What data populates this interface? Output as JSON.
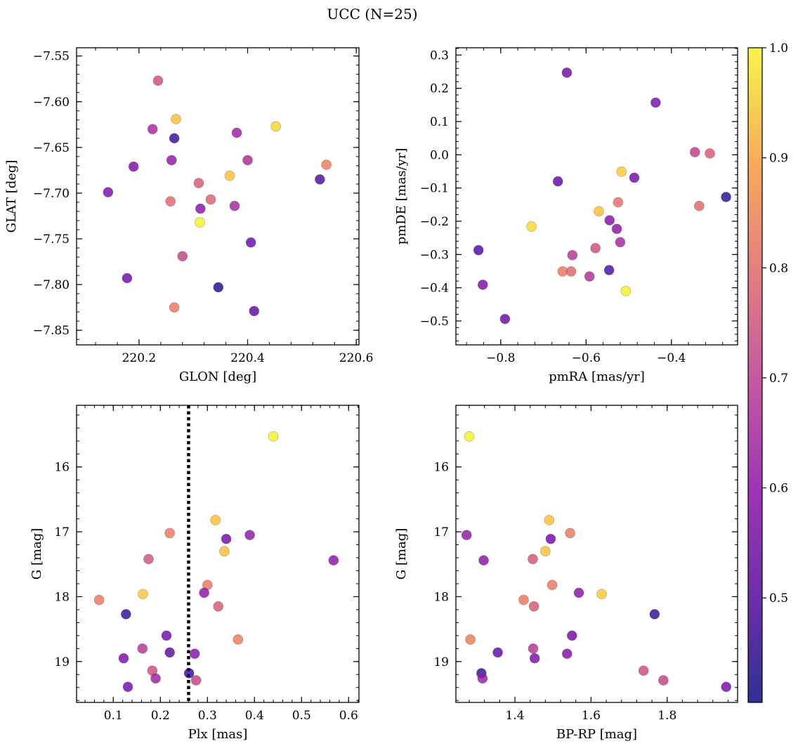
{
  "title": "UCC (N=25)",
  "colorbar": {
    "range": [
      0.405,
      1.0
    ],
    "ticks": [
      0.5,
      0.6,
      0.7,
      0.8,
      0.9,
      1.0
    ],
    "tick_labels": [
      "0.5",
      "0.6",
      "0.7",
      "0.8",
      "0.9",
      "1.0"
    ],
    "colormap": "plasma"
  },
  "chart_data": [
    {
      "type": "scatter",
      "xlabel": "GLON [deg]",
      "ylabel": "GLAT [deg]",
      "xlim": [
        220.085,
        220.605
      ],
      "ylim": [
        -7.866,
        -7.541
      ],
      "xticks": [
        220.2,
        220.4,
        220.6
      ],
      "xtick_labels": [
        "220.2",
        "220.4",
        "220.6"
      ],
      "yticks": [
        -7.85,
        -7.8,
        -7.75,
        -7.7,
        -7.65,
        -7.6,
        -7.55
      ],
      "ytick_labels": [
        "−7.85",
        "−7.80",
        "−7.75",
        "−7.70",
        "−7.65",
        "−7.60",
        "−7.55"
      ],
      "points": [
        {
          "x": 220.235,
          "y": -7.577,
          "c": 0.7
        },
        {
          "x": 220.268,
          "y": -7.619,
          "c": 0.92
        },
        {
          "x": 220.225,
          "y": -7.63,
          "c": 0.62
        },
        {
          "x": 220.265,
          "y": -7.64,
          "c": 0.45
        },
        {
          "x": 220.38,
          "y": -7.634,
          "c": 0.6
        },
        {
          "x": 220.452,
          "y": -7.627,
          "c": 0.95
        },
        {
          "x": 220.26,
          "y": -7.664,
          "c": 0.58
        },
        {
          "x": 220.19,
          "y": -7.671,
          "c": 0.55
        },
        {
          "x": 220.4,
          "y": -7.664,
          "c": 0.63
        },
        {
          "x": 220.545,
          "y": -7.669,
          "c": 0.8
        },
        {
          "x": 220.367,
          "y": -7.681,
          "c": 0.92
        },
        {
          "x": 220.533,
          "y": -7.685,
          "c": 0.47
        },
        {
          "x": 220.31,
          "y": -7.689,
          "c": 0.73
        },
        {
          "x": 220.143,
          "y": -7.699,
          "c": 0.55
        },
        {
          "x": 220.258,
          "y": -7.709,
          "c": 0.76
        },
        {
          "x": 220.332,
          "y": -7.707,
          "c": 0.75
        },
        {
          "x": 220.313,
          "y": -7.717,
          "c": 0.57
        },
        {
          "x": 220.376,
          "y": -7.714,
          "c": 0.62
        },
        {
          "x": 220.312,
          "y": -7.732,
          "c": 0.99
        },
        {
          "x": 220.406,
          "y": -7.754,
          "c": 0.52
        },
        {
          "x": 220.28,
          "y": -7.769,
          "c": 0.68
        },
        {
          "x": 220.178,
          "y": -7.793,
          "c": 0.53
        },
        {
          "x": 220.346,
          "y": -7.803,
          "c": 0.42
        },
        {
          "x": 220.265,
          "y": -7.825,
          "c": 0.79
        },
        {
          "x": 220.412,
          "y": -7.829,
          "c": 0.5
        }
      ]
    },
    {
      "type": "scatter",
      "xlabel": "pmRA [mas/yr]",
      "ylabel": "pmDE [mas/yr]",
      "xlim": [
        -0.905,
        -0.245
      ],
      "ylim": [
        -0.572,
        0.322
      ],
      "xticks": [
        -0.8,
        -0.6,
        -0.4
      ],
      "xtick_labels": [
        "−0.8",
        "−0.6",
        "−0.4"
      ],
      "yticks": [
        -0.5,
        -0.4,
        -0.3,
        -0.2,
        -0.1,
        0.0,
        0.1,
        0.2,
        0.3
      ],
      "ytick_labels": [
        "−0.5",
        "−0.4",
        "−0.3",
        "−0.2",
        "−0.1",
        "0.0",
        "0.1",
        "0.2",
        "0.3"
      ],
      "points": [
        {
          "x": -0.645,
          "y": 0.247,
          "c": 0.53
        },
        {
          "x": -0.437,
          "y": 0.157,
          "c": 0.54
        },
        {
          "x": -0.345,
          "y": 0.008,
          "c": 0.67
        },
        {
          "x": -0.31,
          "y": 0.004,
          "c": 0.73
        },
        {
          "x": -0.517,
          "y": -0.051,
          "c": 0.93
        },
        {
          "x": -0.487,
          "y": -0.069,
          "c": 0.53
        },
        {
          "x": -0.666,
          "y": -0.08,
          "c": 0.5
        },
        {
          "x": -0.272,
          "y": -0.127,
          "c": 0.43
        },
        {
          "x": -0.525,
          "y": -0.143,
          "c": 0.78
        },
        {
          "x": -0.335,
          "y": -0.154,
          "c": 0.76
        },
        {
          "x": -0.57,
          "y": -0.17,
          "c": 0.92
        },
        {
          "x": -0.728,
          "y": -0.216,
          "c": 0.96
        },
        {
          "x": -0.545,
          "y": -0.197,
          "c": 0.56
        },
        {
          "x": -0.528,
          "y": -0.223,
          "c": 0.57
        },
        {
          "x": -0.52,
          "y": -0.263,
          "c": 0.62
        },
        {
          "x": -0.578,
          "y": -0.281,
          "c": 0.7
        },
        {
          "x": -0.632,
          "y": -0.302,
          "c": 0.65
        },
        {
          "x": -0.852,
          "y": -0.287,
          "c": 0.48
        },
        {
          "x": -0.655,
          "y": -0.351,
          "c": 0.79
        },
        {
          "x": -0.635,
          "y": -0.351,
          "c": 0.76
        },
        {
          "x": -0.546,
          "y": -0.347,
          "c": 0.47
        },
        {
          "x": -0.592,
          "y": -0.366,
          "c": 0.64
        },
        {
          "x": -0.507,
          "y": -0.41,
          "c": 0.99
        },
        {
          "x": -0.842,
          "y": -0.391,
          "c": 0.55
        },
        {
          "x": -0.79,
          "y": -0.494,
          "c": 0.52
        }
      ]
    },
    {
      "type": "scatter",
      "xlabel": "Plx [mas]",
      "ylabel": "G [mag]",
      "xlim": [
        0.022,
        0.622
      ],
      "ylim": [
        19.63,
        15.05
      ],
      "xticks": [
        0.1,
        0.2,
        0.3,
        0.4,
        0.5,
        0.6
      ],
      "xtick_labels": [
        "0.1",
        "0.2",
        "0.3",
        "0.4",
        "0.5",
        "0.6"
      ],
      "yticks": [
        16,
        17,
        18,
        19
      ],
      "ytick_labels": [
        "16",
        "17",
        "18",
        "19"
      ],
      "vline_x": 0.26,
      "points": [
        {
          "x": 0.44,
          "y": 15.53,
          "c": 0.99
        },
        {
          "x": 0.317,
          "y": 16.82,
          "c": 0.92
        },
        {
          "x": 0.22,
          "y": 17.02,
          "c": 0.79
        },
        {
          "x": 0.34,
          "y": 17.11,
          "c": 0.53
        },
        {
          "x": 0.39,
          "y": 17.05,
          "c": 0.58
        },
        {
          "x": 0.336,
          "y": 17.3,
          "c": 0.92
        },
        {
          "x": 0.175,
          "y": 17.42,
          "c": 0.72
        },
        {
          "x": 0.568,
          "y": 17.44,
          "c": 0.57
        },
        {
          "x": 0.3,
          "y": 17.82,
          "c": 0.79
        },
        {
          "x": 0.293,
          "y": 17.94,
          "c": 0.57
        },
        {
          "x": 0.163,
          "y": 17.96,
          "c": 0.93
        },
        {
          "x": 0.07,
          "y": 18.05,
          "c": 0.79
        },
        {
          "x": 0.323,
          "y": 18.15,
          "c": 0.73
        },
        {
          "x": 0.127,
          "y": 18.27,
          "c": 0.44
        },
        {
          "x": 0.213,
          "y": 18.6,
          "c": 0.53
        },
        {
          "x": 0.365,
          "y": 18.66,
          "c": 0.8
        },
        {
          "x": 0.162,
          "y": 18.8,
          "c": 0.65
        },
        {
          "x": 0.22,
          "y": 18.86,
          "c": 0.5
        },
        {
          "x": 0.273,
          "y": 18.88,
          "c": 0.56
        },
        {
          "x": 0.122,
          "y": 18.95,
          "c": 0.55
        },
        {
          "x": 0.183,
          "y": 19.14,
          "c": 0.7
        },
        {
          "x": 0.261,
          "y": 19.18,
          "c": 0.45
        },
        {
          "x": 0.19,
          "y": 19.26,
          "c": 0.6
        },
        {
          "x": 0.276,
          "y": 19.29,
          "c": 0.68
        },
        {
          "x": 0.131,
          "y": 19.39,
          "c": 0.54
        }
      ]
    },
    {
      "type": "scatter",
      "xlabel": "BP-RP [mag]",
      "ylabel": "G [mag]",
      "xlim": [
        1.245,
        1.985
      ],
      "ylim": [
        19.63,
        15.05
      ],
      "xticks": [
        1.4,
        1.6,
        1.8
      ],
      "xtick_labels": [
        "1.4",
        "1.6",
        "1.8"
      ],
      "yticks": [
        16,
        17,
        18,
        19
      ],
      "ytick_labels": [
        "16",
        "17",
        "18",
        "19"
      ],
      "points": [
        {
          "x": 1.28,
          "y": 15.53,
          "c": 0.99
        },
        {
          "x": 1.49,
          "y": 16.82,
          "c": 0.92
        },
        {
          "x": 1.273,
          "y": 17.05,
          "c": 0.58
        },
        {
          "x": 1.545,
          "y": 17.02,
          "c": 0.79
        },
        {
          "x": 1.494,
          "y": 17.11,
          "c": 0.53
        },
        {
          "x": 1.48,
          "y": 17.3,
          "c": 0.92
        },
        {
          "x": 1.318,
          "y": 17.44,
          "c": 0.57
        },
        {
          "x": 1.447,
          "y": 17.42,
          "c": 0.72
        },
        {
          "x": 1.498,
          "y": 17.82,
          "c": 0.79
        },
        {
          "x": 1.568,
          "y": 17.94,
          "c": 0.57
        },
        {
          "x": 1.628,
          "y": 17.96,
          "c": 0.93
        },
        {
          "x": 1.423,
          "y": 18.05,
          "c": 0.79
        },
        {
          "x": 1.45,
          "y": 18.15,
          "c": 0.73
        },
        {
          "x": 1.767,
          "y": 18.27,
          "c": 0.44
        },
        {
          "x": 1.55,
          "y": 18.6,
          "c": 0.53
        },
        {
          "x": 1.283,
          "y": 18.66,
          "c": 0.8
        },
        {
          "x": 1.448,
          "y": 18.8,
          "c": 0.65
        },
        {
          "x": 1.355,
          "y": 18.86,
          "c": 0.5
        },
        {
          "x": 1.537,
          "y": 18.88,
          "c": 0.56
        },
        {
          "x": 1.452,
          "y": 18.95,
          "c": 0.55
        },
        {
          "x": 1.738,
          "y": 19.14,
          "c": 0.7
        },
        {
          "x": 1.312,
          "y": 19.18,
          "c": 0.45
        },
        {
          "x": 1.315,
          "y": 19.26,
          "c": 0.6
        },
        {
          "x": 1.79,
          "y": 19.29,
          "c": 0.68
        },
        {
          "x": 1.955,
          "y": 19.39,
          "c": 0.54
        }
      ]
    }
  ]
}
